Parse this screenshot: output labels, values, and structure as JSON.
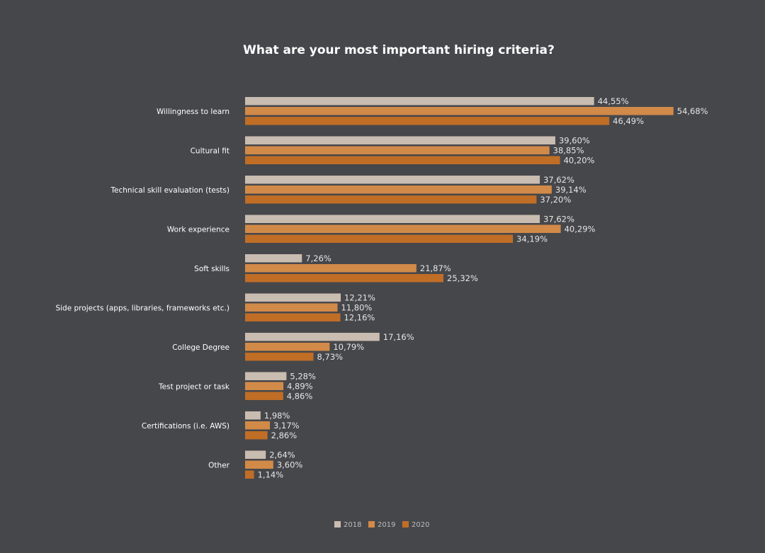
{
  "chart_data": {
    "type": "bar",
    "orientation": "horizontal",
    "title": "What are your most important hiring criteria?",
    "xlabel": "",
    "ylabel": "",
    "xlim": [
      0,
      55
    ],
    "grid": false,
    "legend_position": "bottom",
    "value_labels": true,
    "categories": [
      "Willingness to learn",
      "Cultural fit",
      "Technical skill evaluation (tests)",
      "Work experience",
      "Soft skills",
      "Side projects (apps, libraries, frameworks etc.)",
      "College Degree",
      "Test project or task",
      "Certifications (i.e. AWS)",
      "Other"
    ],
    "series": [
      {
        "name": "2018",
        "color": "#c9bcb0",
        "values": [
          44.55,
          39.6,
          37.62,
          37.62,
          7.26,
          12.21,
          17.16,
          5.28,
          1.98,
          2.64
        ],
        "labels": [
          "44,55%",
          "39,60%",
          "37,62%",
          "37,62%",
          "7,26%",
          "12,21%",
          "17,16%",
          "5,28%",
          "1,98%",
          "2,64%"
        ]
      },
      {
        "name": "2019",
        "color": "#d28a48",
        "values": [
          54.68,
          38.85,
          39.14,
          40.29,
          21.87,
          11.8,
          10.79,
          4.89,
          3.17,
          3.6
        ],
        "labels": [
          "54,68%",
          "38,85%",
          "39,14%",
          "40,29%",
          "21,87%",
          "11,80%",
          "10,79%",
          "4,89%",
          "3,17%",
          "3,60%"
        ]
      },
      {
        "name": "2020",
        "color": "#c06d26",
        "values": [
          46.49,
          40.2,
          37.2,
          34.19,
          25.32,
          12.16,
          8.73,
          4.86,
          2.86,
          1.14
        ],
        "labels": [
          "46,49%",
          "40,20%",
          "37,20%",
          "34,19%",
          "25,32%",
          "12,16%",
          "8,73%",
          "4,86%",
          "2,86%",
          "1,14%"
        ]
      }
    ]
  }
}
